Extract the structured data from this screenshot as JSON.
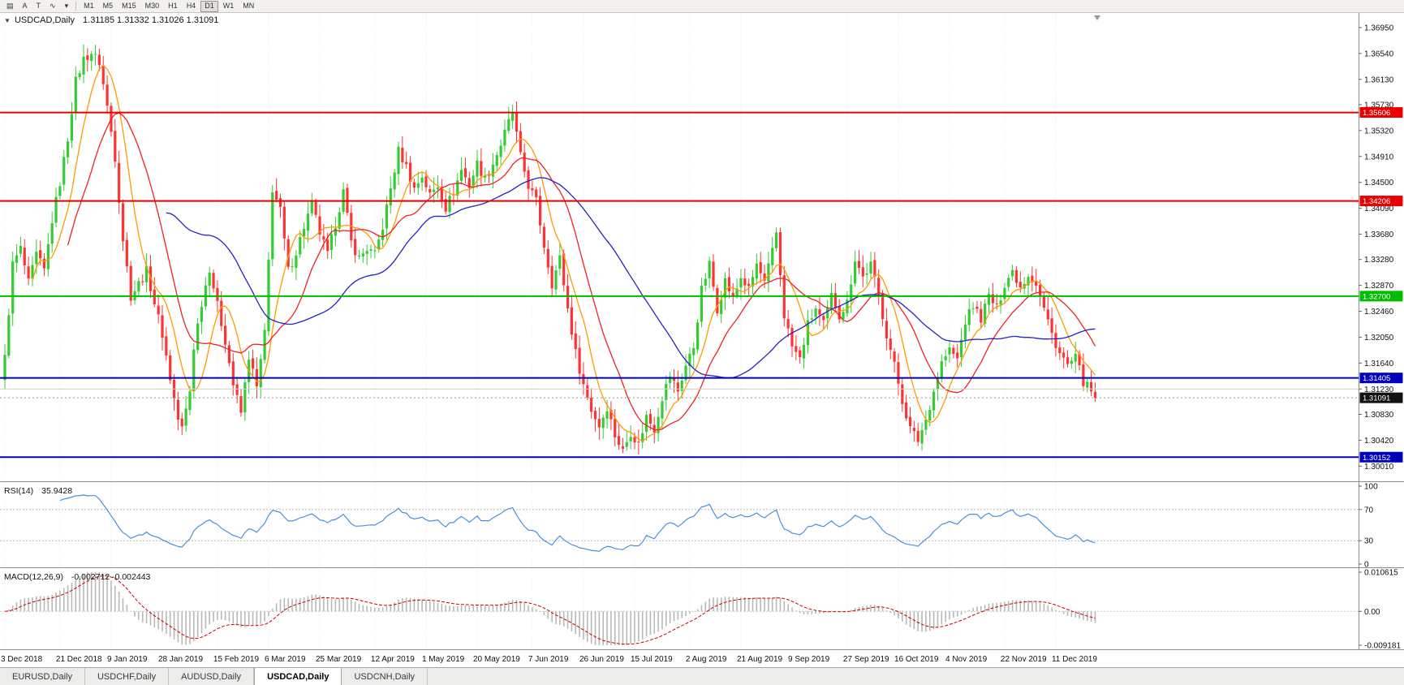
{
  "toolbar": {
    "icons": [
      {
        "name": "chart-tile-icon",
        "glyph": "▤"
      },
      {
        "name": "cursor-a-icon",
        "glyph": "A"
      },
      {
        "name": "text-tool-icon",
        "glyph": "T"
      },
      {
        "name": "polyline-indicator-icon",
        "glyph": "∿"
      },
      {
        "name": "chevron-down-icon",
        "glyph": "▾"
      }
    ],
    "timeframes": [
      {
        "label": "M1",
        "active": false
      },
      {
        "label": "M5",
        "active": false
      },
      {
        "label": "M15",
        "active": false
      },
      {
        "label": "M30",
        "active": false
      },
      {
        "label": "H1",
        "active": false
      },
      {
        "label": "H4",
        "active": false
      },
      {
        "label": "D1",
        "active": true
      },
      {
        "label": "W1",
        "active": false
      },
      {
        "label": "MN",
        "active": false
      }
    ]
  },
  "chart": {
    "title": {
      "expander": "▼",
      "symbol": "USDCAD,Daily",
      "ohlc": "1.31185 1.31332 1.31026 1.31091"
    },
    "rsi_title": {
      "label": "RSI(14)",
      "value": "35.9428"
    },
    "macd_title": {
      "label": "MACD(12,26,9)",
      "values": "-0.002712 -0.002443"
    }
  },
  "tabs": {
    "items": [
      {
        "label": "EURUSD,Daily",
        "active": false
      },
      {
        "label": "USDCHF,Daily",
        "active": false
      },
      {
        "label": "AUDUSD,Daily",
        "active": false
      },
      {
        "label": "USDCAD,Daily",
        "active": true
      },
      {
        "label": "USDCNH,Daily",
        "active": false
      }
    ]
  },
  "chart_data": {
    "type": "candlestick",
    "symbol": "USDCAD",
    "timeframe": "Daily",
    "last_candle": {
      "open": 1.31185,
      "high": 1.31332,
      "low": 1.31026,
      "close": 1.31091
    },
    "y_axis": {
      "view_max": 1.3718,
      "view_min": 1.2977,
      "ticks": [
        "1.36950",
        "1.36540",
        "1.36130",
        "1.35730",
        "1.35320",
        "1.34910",
        "1.34500",
        "1.34090",
        "1.33680",
        "1.33280",
        "1.32870",
        "1.32460",
        "1.32050",
        "1.31640",
        "1.31230",
        "1.30830",
        "1.30420",
        "1.30010"
      ]
    },
    "x_axis": {
      "labels": [
        {
          "text": "3 Dec 2018",
          "i": 0
        },
        {
          "text": "21 Dec 2018",
          "i": 14
        },
        {
          "text": "9 Jan 2019",
          "i": 27
        },
        {
          "text": "28 Jan 2019",
          "i": 40
        },
        {
          "text": "15 Feb 2019",
          "i": 54
        },
        {
          "text": "6 Mar 2019",
          "i": 67
        },
        {
          "text": "25 Mar 2019",
          "i": 80
        },
        {
          "text": "12 Apr 2019",
          "i": 94
        },
        {
          "text": "1 May 2019",
          "i": 107
        },
        {
          "text": "20 May 2019",
          "i": 120
        },
        {
          "text": "7 Jun 2019",
          "i": 134
        },
        {
          "text": "26 Jun 2019",
          "i": 147
        },
        {
          "text": "15 Jul 2019",
          "i": 160
        },
        {
          "text": "2 Aug 2019",
          "i": 174
        },
        {
          "text": "21 Aug 2019",
          "i": 187
        },
        {
          "text": "9 Sep 2019",
          "i": 200
        },
        {
          "text": "27 Sep 2019",
          "i": 214
        },
        {
          "text": "16 Oct 2019",
          "i": 227
        },
        {
          "text": "4 Nov 2019",
          "i": 240
        },
        {
          "text": "22 Nov 2019",
          "i": 254
        },
        {
          "text": "11 Dec 2019",
          "i": 267
        }
      ]
    },
    "candles_total": 278,
    "close_anchors": [
      [
        0,
        1.3172
      ],
      [
        2,
        1.332
      ],
      [
        4,
        1.3345
      ],
      [
        6,
        1.329
      ],
      [
        8,
        1.3335
      ],
      [
        10,
        1.331
      ],
      [
        12,
        1.339
      ],
      [
        14,
        1.345
      ],
      [
        16,
        1.352
      ],
      [
        18,
        1.361
      ],
      [
        20,
        1.3645
      ],
      [
        22,
        1.3655
      ],
      [
        24,
        1.364
      ],
      [
        26,
        1.357
      ],
      [
        28,
        1.349
      ],
      [
        30,
        1.336
      ],
      [
        32,
        1.327
      ],
      [
        34,
        1.329
      ],
      [
        36,
        1.331
      ],
      [
        38,
        1.326
      ],
      [
        40,
        1.321
      ],
      [
        42,
        1.314
      ],
      [
        44,
        1.3075
      ],
      [
        45,
        1.306
      ],
      [
        47,
        1.312
      ],
      [
        48,
        1.319
      ],
      [
        50,
        1.326
      ],
      [
        52,
        1.3315
      ],
      [
        54,
        1.3255
      ],
      [
        56,
        1.32
      ],
      [
        58,
        1.313
      ],
      [
        60,
        1.3085
      ],
      [
        62,
        1.3175
      ],
      [
        64,
        1.3125
      ],
      [
        66,
        1.321
      ],
      [
        68,
        1.344
      ],
      [
        70,
        1.3405
      ],
      [
        72,
        1.331
      ],
      [
        74,
        1.334
      ],
      [
        76,
        1.338
      ],
      [
        78,
        1.3415
      ],
      [
        80,
        1.337
      ],
      [
        82,
        1.3335
      ],
      [
        84,
        1.3385
      ],
      [
        86,
        1.3435
      ],
      [
        88,
        1.3355
      ],
      [
        90,
        1.333
      ],
      [
        92,
        1.3345
      ],
      [
        94,
        1.3335
      ],
      [
        96,
        1.338
      ],
      [
        98,
        1.344
      ],
      [
        100,
        1.35
      ],
      [
        102,
        1.3475
      ],
      [
        104,
        1.344
      ],
      [
        106,
        1.346
      ],
      [
        108,
        1.343
      ],
      [
        110,
        1.3445
      ],
      [
        112,
        1.341
      ],
      [
        114,
        1.3435
      ],
      [
        116,
        1.347
      ],
      [
        118,
        1.3445
      ],
      [
        120,
        1.348
      ],
      [
        122,
        1.3455
      ],
      [
        124,
        1.348
      ],
      [
        126,
        1.351
      ],
      [
        128,
        1.3545
      ],
      [
        129,
        1.356
      ],
      [
        131,
        1.349
      ],
      [
        133,
        1.3445
      ],
      [
        135,
        1.342
      ],
      [
        137,
        1.335
      ],
      [
        139,
        1.329
      ],
      [
        141,
        1.333
      ],
      [
        143,
        1.325
      ],
      [
        145,
        1.318
      ],
      [
        147,
        1.313
      ],
      [
        149,
        1.309
      ],
      [
        151,
        1.3065
      ],
      [
        153,
        1.3095
      ],
      [
        155,
        1.305
      ],
      [
        157,
        1.3025
      ],
      [
        159,
        1.3055
      ],
      [
        161,
        1.3035
      ],
      [
        163,
        1.308
      ],
      [
        165,
        1.306
      ],
      [
        167,
        1.311
      ],
      [
        169,
        1.3145
      ],
      [
        171,
        1.312
      ],
      [
        173,
        1.316
      ],
      [
        175,
        1.319
      ],
      [
        177,
        1.328
      ],
      [
        179,
        1.332
      ],
      [
        181,
        1.325
      ],
      [
        183,
        1.3295
      ],
      [
        185,
        1.3265
      ],
      [
        187,
        1.33
      ],
      [
        189,
        1.328
      ],
      [
        191,
        1.332
      ],
      [
        193,
        1.329
      ],
      [
        195,
        1.334
      ],
      [
        196,
        1.337
      ],
      [
        198,
        1.324
      ],
      [
        200,
        1.319
      ],
      [
        202,
        1.317
      ],
      [
        204,
        1.3225
      ],
      [
        206,
        1.325
      ],
      [
        208,
        1.3225
      ],
      [
        210,
        1.327
      ],
      [
        212,
        1.324
      ],
      [
        214,
        1.326
      ],
      [
        216,
        1.333
      ],
      [
        218,
        1.33
      ],
      [
        220,
        1.332
      ],
      [
        222,
        1.327
      ],
      [
        224,
        1.321
      ],
      [
        226,
        1.316
      ],
      [
        228,
        1.3105
      ],
      [
        230,
        1.306
      ],
      [
        232,
        1.3042
      ],
      [
        234,
        1.3075
      ],
      [
        236,
        1.312
      ],
      [
        238,
        1.3165
      ],
      [
        240,
        1.3185
      ],
      [
        242,
        1.317
      ],
      [
        244,
        1.323
      ],
      [
        246,
        1.3255
      ],
      [
        248,
        1.3235
      ],
      [
        250,
        1.327
      ],
      [
        252,
        1.325
      ],
      [
        254,
        1.329
      ],
      [
        256,
        1.331
      ],
      [
        258,
        1.3285
      ],
      [
        260,
        1.3305
      ],
      [
        262,
        1.329
      ],
      [
        264,
        1.325
      ],
      [
        266,
        1.321
      ],
      [
        268,
        1.318
      ],
      [
        270,
        1.316
      ],
      [
        272,
        1.3172
      ],
      [
        274,
        1.3135
      ],
      [
        276,
        1.3118
      ],
      [
        277,
        1.31091
      ]
    ],
    "horizontal_lines": [
      {
        "price": 1.35606,
        "label": "1.35606",
        "color": "#e80000",
        "width": 2
      },
      {
        "price": 1.34206,
        "label": "1.34206",
        "color": "#e80000",
        "width": 2
      },
      {
        "price": 1.327,
        "label": "1.32700",
        "color": "#00bb00",
        "width": 2
      },
      {
        "price": 1.31405,
        "label": "1.31405",
        "color": "#0000bb",
        "width": 2
      },
      {
        "price": 1.30152,
        "label": "1.30152",
        "color": "#0000bb",
        "width": 2
      },
      {
        "price": 1.3123,
        "label": "",
        "color": "#cfcfcf",
        "width": 1
      }
    ],
    "current_price": {
      "price": 1.31091,
      "label": "1.31091",
      "color": "#111111"
    },
    "moving_averages": [
      {
        "period": 8,
        "color": "#ff9a00"
      },
      {
        "period": 17,
        "color": "#ee2222"
      },
      {
        "period": 42,
        "color": "#2323c8"
      }
    ],
    "rsi": {
      "period": 14,
      "value": 35.9428,
      "levels": [
        100,
        70,
        30,
        0
      ],
      "color": "#4a90d9"
    },
    "macd": {
      "fast": 12,
      "slow": 26,
      "signal": 9,
      "macd_value": -0.002712,
      "signal_value": -0.002443,
      "axis_max_label": "0.010615",
      "axis_zero_label": "0.00",
      "axis_min_label": "-0.009181",
      "axis_max": 0.010615,
      "axis_min": -0.009181,
      "hist_color": "#b8b8b8",
      "signal_color": "#cc0000"
    },
    "candle_colors": {
      "up": "#33cc33",
      "down": "#ff3333"
    }
  }
}
